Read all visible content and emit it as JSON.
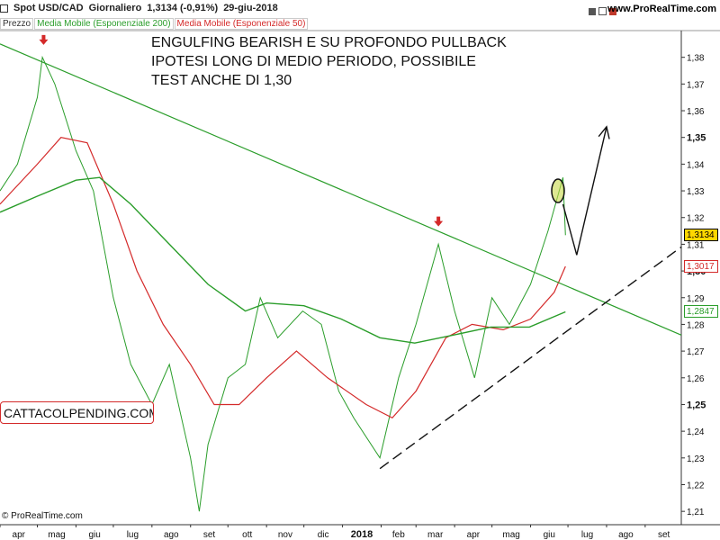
{
  "header": {
    "symbol": "Spot USD/CAD",
    "period": "Giornaliero",
    "quote": "1,3134 (-0,91%)",
    "date": "29-giu-2018",
    "site": "www.ProRealTime.com"
  },
  "indicators": [
    {
      "label": "Prezzo",
      "color": "#333333"
    },
    {
      "label": "Media Mobile (Esponenziale 200)",
      "color": "#2a9d2a"
    },
    {
      "label": "Media Mobile (Esponenziale 50)",
      "color": "#d42a2a"
    }
  ],
  "annotation_lines": [
    "ENGULFING BEARISH E SU PROFONDO PULLBACK",
    "IPOTESI LONG DI MEDIO PERIODO, POSSIBILE",
    "TEST ANCHE DI 1,30"
  ],
  "watermark": "CATTACOLPENDING.COM",
  "copyright": "© ProRealTime.com",
  "price_tags": [
    {
      "label": "1,3134",
      "value": 1.3134,
      "bg": "#ffd700",
      "fg": "#000000",
      "border": "#000000"
    },
    {
      "label": "1,3017",
      "value": 1.3017,
      "bg": "#ffffff",
      "fg": "#d42a2a",
      "border": "#d42a2a"
    },
    {
      "label": "1,2847",
      "value": 1.2847,
      "bg": "#ffffff",
      "fg": "#2a9d2a",
      "border": "#2a9d2a"
    }
  ],
  "chart_data": {
    "type": "line",
    "title": "Spot USD/CAD Giornaliero",
    "x_tick_labels": [
      "apr",
      "mag",
      "giu",
      "lug",
      "ago",
      "set",
      "ott",
      "nov",
      "dic",
      "2018",
      "feb",
      "mar",
      "apr",
      "mag",
      "giu",
      "lug",
      "ago",
      "set"
    ],
    "y_tick_labels": [
      "1,21",
      "1,22",
      "1,23",
      "1,24",
      "1,25",
      "1,26",
      "1,27",
      "1,28",
      "1,29",
      "1,30",
      "1,31",
      "1,32",
      "1,33",
      "1,34",
      "1,35",
      "1,36",
      "1,37",
      "1,38"
    ],
    "ylim": [
      1.205,
      1.39
    ],
    "x_range": [
      "2017-04-01",
      "2018-09-30"
    ],
    "grid": false,
    "series": [
      {
        "name": "Prezzo",
        "color": "#2a9d2a",
        "x": [
          "2017-04-01",
          "2017-04-15",
          "2017-05-01",
          "2017-05-05",
          "2017-05-15",
          "2017-06-01",
          "2017-06-15",
          "2017-07-01",
          "2017-07-15",
          "2017-08-01",
          "2017-08-15",
          "2017-09-01",
          "2017-09-08",
          "2017-09-15",
          "2017-10-01",
          "2017-10-15",
          "2017-10-27",
          "2017-11-10",
          "2017-11-30",
          "2017-12-15",
          "2017-12-29",
          "2018-01-10",
          "2018-01-31",
          "2018-02-15",
          "2018-03-01",
          "2018-03-19",
          "2018-04-01",
          "2018-04-17",
          "2018-05-01",
          "2018-05-15",
          "2018-06-01",
          "2018-06-15",
          "2018-06-27",
          "2018-06-29"
        ],
        "y": [
          1.33,
          1.34,
          1.365,
          1.38,
          1.37,
          1.345,
          1.33,
          1.29,
          1.265,
          1.25,
          1.265,
          1.23,
          1.21,
          1.235,
          1.26,
          1.265,
          1.29,
          1.275,
          1.285,
          1.28,
          1.255,
          1.245,
          1.23,
          1.26,
          1.28,
          1.31,
          1.285,
          1.26,
          1.29,
          1.28,
          1.295,
          1.315,
          1.335,
          1.3134
        ]
      },
      {
        "name": "Media Mobile (Esponenziale 50)",
        "color": "#d42a2a",
        "x": [
          "2017-04-01",
          "2017-05-01",
          "2017-05-20",
          "2017-06-10",
          "2017-07-01",
          "2017-07-20",
          "2017-08-10",
          "2017-09-01",
          "2017-09-20",
          "2017-10-10",
          "2017-11-01",
          "2017-11-25",
          "2017-12-20",
          "2018-01-20",
          "2018-02-10",
          "2018-03-01",
          "2018-03-25",
          "2018-04-15",
          "2018-05-10",
          "2018-06-01",
          "2018-06-20",
          "2018-06-29"
        ],
        "y": [
          1.325,
          1.34,
          1.35,
          1.348,
          1.325,
          1.3,
          1.28,
          1.265,
          1.25,
          1.25,
          1.26,
          1.27,
          1.26,
          1.25,
          1.245,
          1.255,
          1.275,
          1.28,
          1.278,
          1.282,
          1.292,
          1.3017
        ]
      },
      {
        "name": "Media Mobile (Esponenziale 200)",
        "color": "#2a9d2a",
        "x": [
          "2017-04-01",
          "2017-05-01",
          "2017-06-01",
          "2017-06-20",
          "2017-07-15",
          "2017-08-15",
          "2017-09-15",
          "2017-10-15",
          "2017-11-01",
          "2017-12-01",
          "2017-12-31",
          "2018-01-31",
          "2018-02-28",
          "2018-03-31",
          "2018-04-30",
          "2018-05-31",
          "2018-06-29"
        ],
        "y": [
          1.322,
          1.328,
          1.334,
          1.335,
          1.325,
          1.31,
          1.295,
          1.285,
          1.288,
          1.287,
          1.282,
          1.275,
          1.273,
          1.276,
          1.279,
          1.279,
          1.2847
        ]
      },
      {
        "name": "trendline-down",
        "color": "#2a9d2a",
        "x": [
          "2017-04-01",
          "2018-09-30"
        ],
        "y": [
          1.385,
          1.276
        ]
      },
      {
        "name": "trendline-up-dashed",
        "color": "#111111",
        "x": [
          "2018-01-31",
          "2018-09-30"
        ],
        "y": [
          1.226,
          1.309
        ]
      },
      {
        "name": "projection-arrow",
        "color": "#111111",
        "x": [
          "2018-06-27",
          "2018-07-08",
          "2018-08-01"
        ],
        "y": [
          1.325,
          1.306,
          1.354
        ]
      }
    ],
    "markers": [
      {
        "name": "down-arrow-top",
        "x": "2017-05-06",
        "y": 1.386,
        "color": "#d42a2a"
      },
      {
        "name": "down-arrow-mar",
        "x": "2018-03-19",
        "y": 1.318,
        "color": "#d42a2a"
      },
      {
        "name": "engulfing-ellipse",
        "x": "2018-06-23",
        "y": 1.33,
        "color": "#111111"
      }
    ]
  }
}
